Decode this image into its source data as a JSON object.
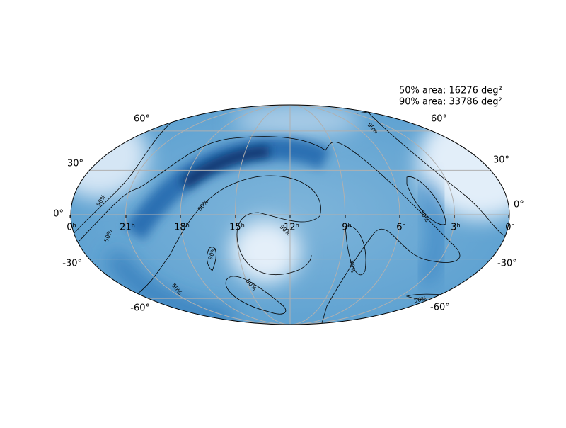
{
  "annotations": [
    "50% area: 16276 deg²",
    "90% area: 33786 deg²"
  ],
  "ra_labels": [
    "0ʰ",
    "21ʰ",
    "18ʰ",
    "15ʰ",
    "12ʰ",
    "9ʰ",
    "6ʰ",
    "3ʰ",
    "0ʰ"
  ],
  "dec_labels_left": [
    "60°",
    "30°",
    "0°",
    "-30°",
    "-60°"
  ],
  "dec_labels_right": [
    "60°",
    "30°",
    "0°",
    "-30°",
    "-60°"
  ],
  "contour_labels": [
    "90%",
    "50%",
    "50%",
    "90%",
    "90%",
    "50%",
    "50%",
    "50%",
    "50%",
    "90%",
    "50%"
  ]
}
